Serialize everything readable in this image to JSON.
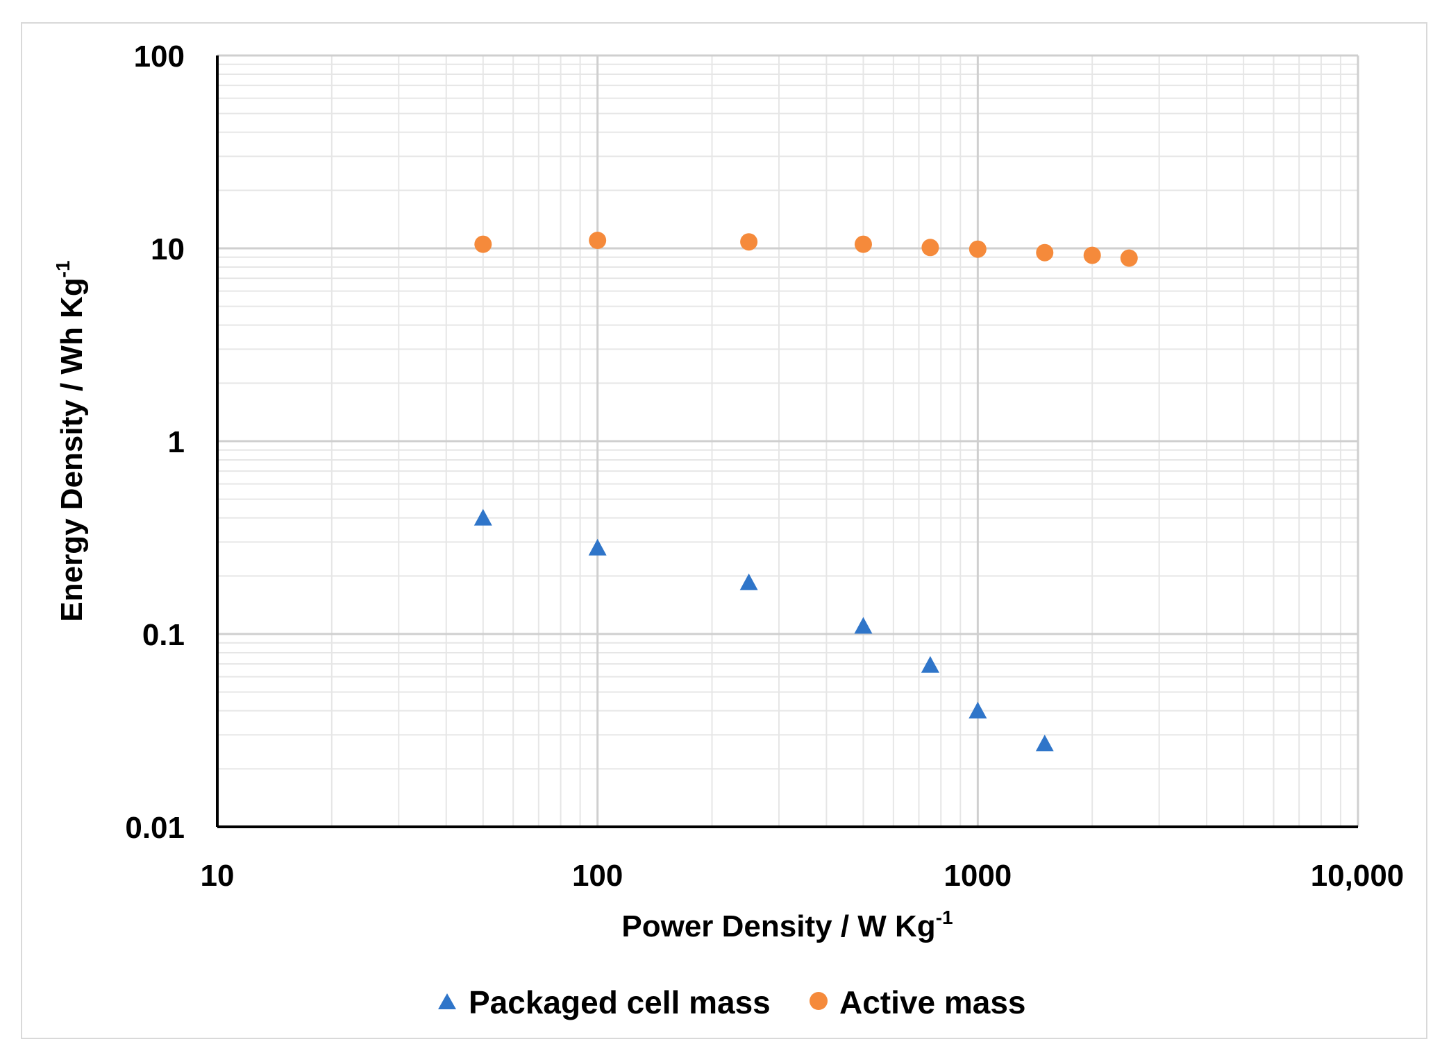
{
  "chart_data": {
    "type": "scatter",
    "xscale": "log",
    "yscale": "log",
    "xlim": [
      10,
      10000
    ],
    "ylim": [
      0.01,
      100
    ],
    "grid": true,
    "xlabel": "Power Density / W Kg",
    "xlabel_sup": "-1",
    "ylabel": "Energy Density / Wh Kg",
    "ylabel_sup": "-1",
    "x_ticks": [
      {
        "value": 10,
        "label": "10"
      },
      {
        "value": 100,
        "label": "100"
      },
      {
        "value": 1000,
        "label": "1000"
      },
      {
        "value": 10000,
        "label": "10,000"
      }
    ],
    "y_ticks": [
      {
        "value": 0.01,
        "label": "0.01"
      },
      {
        "value": 0.1,
        "label": "0.1"
      },
      {
        "value": 1,
        "label": "1"
      },
      {
        "value": 10,
        "label": "10"
      },
      {
        "value": 100,
        "label": "100"
      }
    ],
    "legend_position": "bottom",
    "series": [
      {
        "name": "Packaged cell mass",
        "marker": "triangle",
        "color": "#2f75c9",
        "points": [
          {
            "x": 50,
            "y": 0.4
          },
          {
            "x": 100,
            "y": 0.28
          },
          {
            "x": 250,
            "y": 0.185
          },
          {
            "x": 500,
            "y": 0.11
          },
          {
            "x": 750,
            "y": 0.069
          },
          {
            "x": 1000,
            "y": 0.04
          },
          {
            "x": 1500,
            "y": 0.027
          }
        ]
      },
      {
        "name": "Active mass",
        "marker": "circle",
        "color": "#f58a3b",
        "points": [
          {
            "x": 50,
            "y": 10.5
          },
          {
            "x": 100,
            "y": 11.0
          },
          {
            "x": 250,
            "y": 10.8
          },
          {
            "x": 500,
            "y": 10.5
          },
          {
            "x": 750,
            "y": 10.1
          },
          {
            "x": 1000,
            "y": 9.9
          },
          {
            "x": 1500,
            "y": 9.5
          },
          {
            "x": 2000,
            "y": 9.2
          },
          {
            "x": 2500,
            "y": 8.9
          }
        ]
      }
    ]
  }
}
